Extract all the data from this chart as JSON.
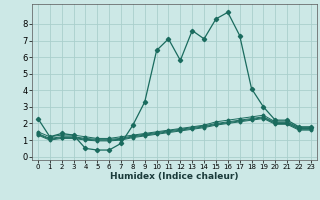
{
  "xlabel": "Humidex (Indice chaleur)",
  "bg_color": "#cce8e6",
  "grid_color": "#aacfcc",
  "line_color": "#1a6b5e",
  "xlim": [
    -0.5,
    23.5
  ],
  "ylim": [
    -0.2,
    9.2
  ],
  "xticks": [
    0,
    1,
    2,
    3,
    4,
    5,
    6,
    7,
    8,
    9,
    10,
    11,
    12,
    13,
    14,
    15,
    16,
    17,
    18,
    19,
    20,
    21,
    22,
    23
  ],
  "yticks": [
    0,
    1,
    2,
    3,
    4,
    5,
    6,
    7,
    8
  ],
  "series": [
    {
      "x": [
        0,
        1,
        2,
        3,
        4,
        5,
        6,
        7,
        8,
        9,
        10,
        11,
        12,
        13,
        14,
        15,
        16,
        17,
        18,
        19,
        20,
        21,
        22,
        23
      ],
      "y": [
        2.3,
        1.2,
        1.4,
        1.3,
        0.5,
        0.4,
        0.4,
        0.8,
        1.9,
        3.3,
        6.4,
        7.1,
        5.8,
        7.6,
        7.1,
        8.3,
        8.7,
        7.3,
        4.1,
        3.0,
        2.2,
        2.2,
        1.8,
        1.8
      ]
    },
    {
      "x": [
        0,
        1,
        2,
        3,
        4,
        5,
        6,
        7,
        8,
        9,
        10,
        11,
        12,
        13,
        14,
        15,
        16,
        17,
        18,
        19,
        20,
        21,
        22,
        23
      ],
      "y": [
        1.5,
        1.2,
        1.3,
        1.3,
        1.2,
        1.1,
        1.1,
        1.2,
        1.3,
        1.4,
        1.5,
        1.6,
        1.7,
        1.8,
        1.9,
        2.1,
        2.2,
        2.3,
        2.4,
        2.5,
        2.1,
        2.1,
        1.75,
        1.75
      ]
    },
    {
      "x": [
        0,
        1,
        2,
        3,
        4,
        5,
        6,
        7,
        8,
        9,
        10,
        11,
        12,
        13,
        14,
        15,
        16,
        17,
        18,
        19,
        20,
        21,
        22,
        23
      ],
      "y": [
        1.4,
        1.1,
        1.2,
        1.2,
        1.1,
        1.05,
        1.05,
        1.1,
        1.25,
        1.35,
        1.45,
        1.55,
        1.65,
        1.75,
        1.85,
        2.0,
        2.1,
        2.2,
        2.3,
        2.4,
        2.05,
        2.05,
        1.7,
        1.7
      ]
    },
    {
      "x": [
        0,
        1,
        2,
        3,
        4,
        5,
        6,
        7,
        8,
        9,
        10,
        11,
        12,
        13,
        14,
        15,
        16,
        17,
        18,
        19,
        20,
        21,
        22,
        23
      ],
      "y": [
        1.35,
        1.05,
        1.15,
        1.15,
        1.05,
        1.0,
        1.0,
        1.05,
        1.2,
        1.3,
        1.4,
        1.5,
        1.6,
        1.7,
        1.8,
        1.95,
        2.05,
        2.15,
        2.25,
        2.35,
        2.0,
        2.0,
        1.65,
        1.65
      ]
    },
    {
      "x": [
        0,
        1,
        2,
        3,
        4,
        5,
        6,
        7,
        8,
        9,
        10,
        11,
        12,
        13,
        14,
        15,
        16,
        17,
        18,
        19,
        20,
        21,
        22,
        23
      ],
      "y": [
        1.3,
        1.0,
        1.1,
        1.1,
        1.0,
        0.95,
        0.95,
        1.0,
        1.15,
        1.25,
        1.35,
        1.45,
        1.55,
        1.65,
        1.75,
        1.9,
        2.0,
        2.1,
        2.2,
        2.3,
        1.95,
        1.95,
        1.6,
        1.6
      ]
    }
  ]
}
